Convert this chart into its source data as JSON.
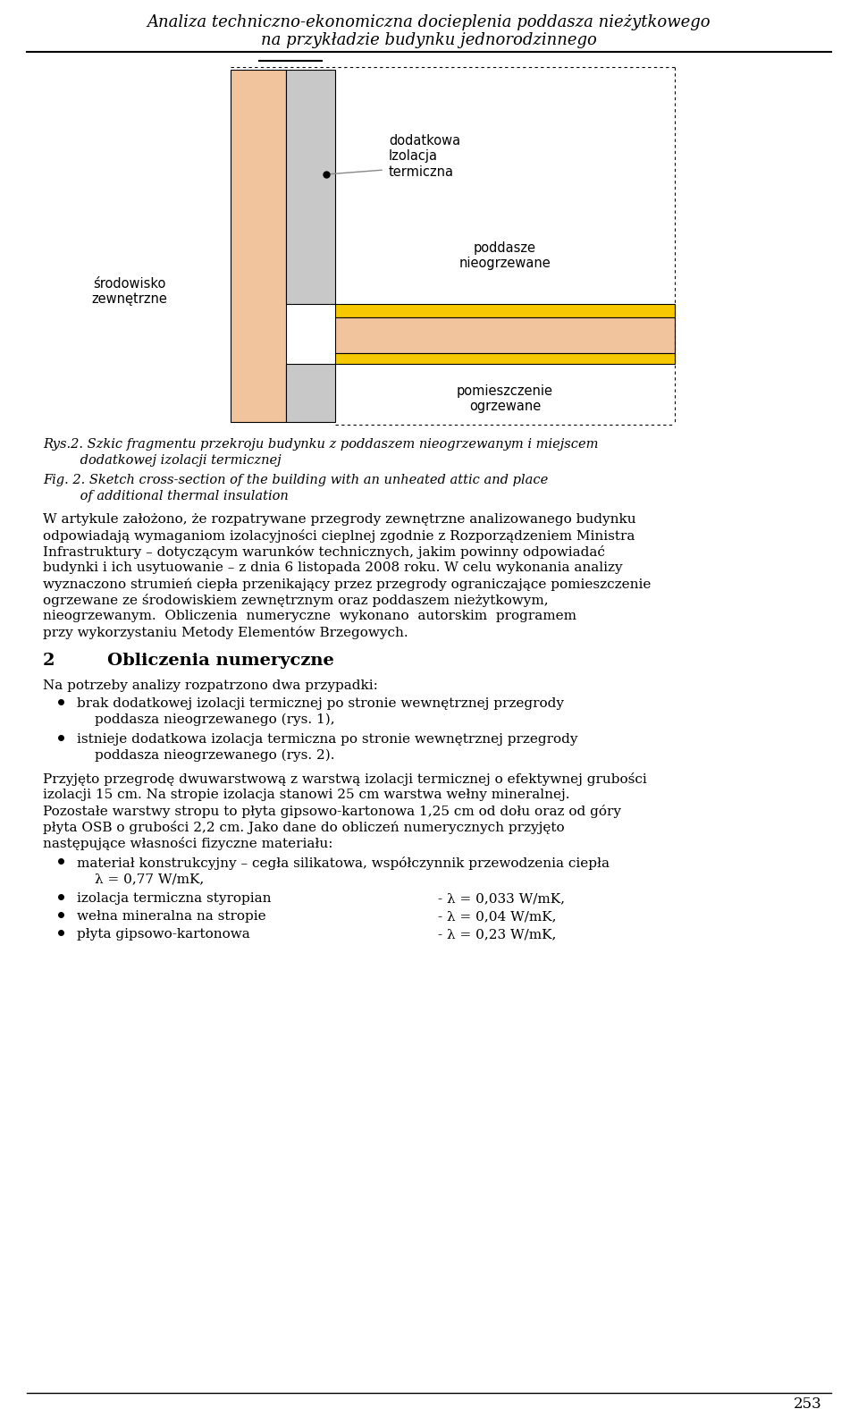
{
  "title_line1": "Analiza techniczno-ekonomiczna docieplenia poddasza nieżytkowego",
  "title_line2": "na przykładzie budynku jednorodzinnego",
  "bg_color": "#ffffff",
  "fig_width": 9.6,
  "fig_height": 15.76,
  "wall_brick_color": "#f2c49e",
  "wall_insul_color": "#c8c8c8",
  "floor_insul_color": "#f5c800",
  "label_dodatkowa": "dodatkowa\nIzolacja\ntermiczna",
  "label_poddasze": "poddasze\nnieogrzewane",
  "label_srodowisko": "środowisko\nzewnętrzne",
  "label_pomieszczenie": "pomieszczenie\nogrzewane",
  "caption_pl_1": "Rys.2. Szkic fragmentu przekroju budynku z poddaszem nieogrzewanym i miejscem",
  "caption_pl_2": "         dodatkowej izolacji termicznej",
  "caption_en_1": "Fig. 2. Sketch cross-section of the building with an unheated attic and place",
  "caption_en_2": "         of additional thermal insulation",
  "para1_lines": [
    "W artykule założono, że rozpatrywane przegrody zewnętrzne analizowanego budynku",
    "odpowiadają wymaganiom izolacyjności cieplnej zgodnie z Rozporządzeniem Ministra",
    "Infrastruktury – dotyczącym warunków technicznych, jakim powinny odpowiadać",
    "budynki i ich usytuowanie – z dnia 6 listopada 2008 roku. W celu wykonania analizy",
    "wyznaczono strumień ciepła przenikający przez przegrody ograniczające pomieszczenie",
    "ogrzewane ze środowiskiem zewnętrznym oraz poddaszem nieżytkowym,",
    "nieogrzewanym.  Obliczenia  numeryczne  wykonano  autorskim  programem",
    "przy wykorzystaniu Metody Elementów Brzegowych."
  ],
  "section2_num": "2",
  "section2_title": "Obliczenia numeryczne",
  "para2": "Na potrzeby analizy rozpatrzono dwa przypadki:",
  "bullet1_line1": "brak dodatkowej izolacji termicznej po stronie wewnętrznej przegrody",
  "bullet1_line2": "poddasza nieogrzewanego (rys. 1),",
  "bullet2_line1": "istnieje dodatkowa izolacja termiczna po stronie wewnętrznej przegrody",
  "bullet2_line2": "poddasza nieogrzewanego (rys. 2).",
  "para3_lines": [
    "Przyjęto przegrodę dwuwarstwową z warstwą izolacji termicznej o efektywnej grubości",
    "izolacji 15 cm. Na stropie izolacja stanowi 25 cm warstwa wełny mineralnej.",
    "Pozostałe warstwy stropu to płyta gipsowo-kartonowa 1,25 cm od dołu oraz od góry",
    "płyta OSB o grubości 2,2 cm. Jako dane do obliczeń numerycznych przyjęto",
    "następujące własności fizyczne materiału:"
  ],
  "bullet3_line1": "materiał konstrukcyjny – cegła silikatowa, współczynnik przewodzenia ciepła",
  "bullet3_line2": "λ = 0,77 W/mK,",
  "bullet4_left": "izolacja termiczna styropian",
  "bullet4_right": "- λ = 0,033 W/mK,",
  "bullet5_left": "wełna mineralna na stropie",
  "bullet5_right": "- λ = 0,04 W/mK,",
  "bullet6_left": "płyta gipsowo-kartonowa",
  "bullet6_right": "- λ = 0,23 W/mK,",
  "page_num": "253"
}
